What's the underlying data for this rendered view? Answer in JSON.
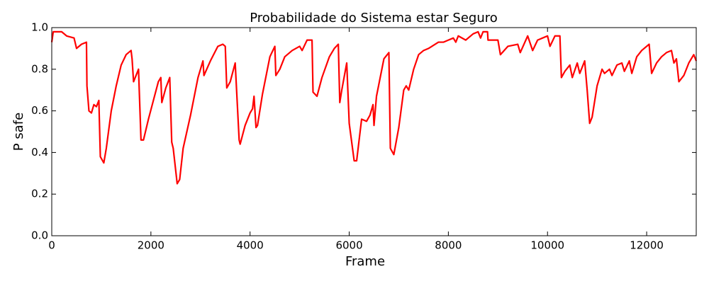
{
  "chart_data": {
    "type": "line",
    "title": "Probabilidade do Sistema estar Seguro",
    "x_label": "Frame",
    "y_label": "P safe",
    "xlim": [
      0,
      13000
    ],
    "ylim": [
      0,
      1
    ],
    "xticks": [
      0,
      2000,
      4000,
      6000,
      8000,
      10000,
      12000
    ],
    "yticks": [
      {
        "value": 0,
        "label": "0.0"
      },
      {
        "value": 0.2,
        "label": "0.2"
      },
      {
        "value": 0.4,
        "label": "0.4"
      },
      {
        "value": 0.6,
        "label": "0.6"
      },
      {
        "value": 0.8,
        "label": "0.8"
      },
      {
        "value": 1,
        "label": "1.0"
      }
    ],
    "grid": false,
    "series": [
      {
        "color": "#ff0000",
        "x": [
          0,
          30,
          200,
          300,
          450,
          500,
          600,
          700,
          710,
          750,
          800,
          850,
          900,
          950,
          980,
          1050,
          1100,
          1200,
          1300,
          1400,
          1500,
          1600,
          1620,
          1650,
          1750,
          1800,
          1850,
          1950,
          2050,
          2150,
          2200,
          2220,
          2300,
          2380,
          2420,
          2450,
          2530,
          2580,
          2650,
          2800,
          2950,
          3050,
          3070,
          3200,
          3350,
          3450,
          3500,
          3530,
          3600,
          3700,
          3780,
          3800,
          3900,
          4000,
          4050,
          4080,
          4120,
          4150,
          4250,
          4400,
          4500,
          4520,
          4600,
          4700,
          4850,
          5000,
          5050,
          5150,
          5250,
          5270,
          5350,
          5450,
          5600,
          5700,
          5780,
          5810,
          5850,
          5950,
          6000,
          6100,
          6150,
          6250,
          6350,
          6420,
          6480,
          6500,
          6550,
          6700,
          6800,
          6830,
          6900,
          7000,
          7100,
          7150,
          7200,
          7300,
          7400,
          7500,
          7600,
          7800,
          7900,
          8000,
          8100,
          8150,
          8200,
          8350,
          8500,
          8600,
          8650,
          8700,
          8790,
          8800,
          9000,
          9050,
          9200,
          9400,
          9450,
          9600,
          9700,
          9800,
          9900,
          10000,
          10050,
          10150,
          10250,
          10280,
          10350,
          10450,
          10500,
          10600,
          10650,
          10750,
          10800,
          10850,
          10900,
          11000,
          11100,
          11150,
          11250,
          11300,
          11400,
          11500,
          11550,
          11650,
          11700,
          11800,
          11900,
          12050,
          12100,
          12200,
          12300,
          12400,
          12500,
          12550,
          12600,
          12650,
          12750,
          12850,
          12950,
          13000
        ],
        "values": [
          0.93,
          0.98,
          0.98,
          0.96,
          0.95,
          0.9,
          0.92,
          0.93,
          0.72,
          0.6,
          0.59,
          0.63,
          0.62,
          0.65,
          0.38,
          0.35,
          0.42,
          0.6,
          0.72,
          0.82,
          0.87,
          0.89,
          0.85,
          0.74,
          0.8,
          0.46,
          0.46,
          0.56,
          0.65,
          0.74,
          0.76,
          0.64,
          0.71,
          0.76,
          0.45,
          0.42,
          0.25,
          0.27,
          0.42,
          0.58,
          0.76,
          0.84,
          0.77,
          0.84,
          0.91,
          0.92,
          0.91,
          0.71,
          0.74,
          0.83,
          0.46,
          0.44,
          0.53,
          0.59,
          0.61,
          0.67,
          0.52,
          0.53,
          0.68,
          0.86,
          0.91,
          0.77,
          0.8,
          0.86,
          0.89,
          0.91,
          0.89,
          0.94,
          0.94,
          0.69,
          0.67,
          0.76,
          0.86,
          0.9,
          0.92,
          0.64,
          0.7,
          0.83,
          0.54,
          0.36,
          0.36,
          0.56,
          0.55,
          0.58,
          0.63,
          0.53,
          0.67,
          0.85,
          0.88,
          0.42,
          0.39,
          0.52,
          0.7,
          0.72,
          0.7,
          0.8,
          0.87,
          0.89,
          0.9,
          0.93,
          0.93,
          0.94,
          0.95,
          0.93,
          0.96,
          0.94,
          0.97,
          0.98,
          0.95,
          0.98,
          0.98,
          0.94,
          0.94,
          0.87,
          0.91,
          0.92,
          0.88,
          0.96,
          0.89,
          0.94,
          0.95,
          0.96,
          0.91,
          0.96,
          0.96,
          0.76,
          0.79,
          0.82,
          0.76,
          0.83,
          0.78,
          0.84,
          0.7,
          0.54,
          0.57,
          0.72,
          0.8,
          0.78,
          0.8,
          0.77,
          0.82,
          0.83,
          0.79,
          0.84,
          0.78,
          0.86,
          0.89,
          0.92,
          0.78,
          0.83,
          0.86,
          0.88,
          0.89,
          0.83,
          0.85,
          0.74,
          0.77,
          0.83,
          0.87,
          0.84
        ]
      }
    ]
  }
}
